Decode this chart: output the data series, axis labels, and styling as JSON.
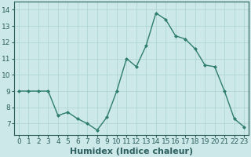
{
  "x": [
    0,
    1,
    2,
    3,
    4,
    5,
    6,
    7,
    8,
    9,
    10,
    11,
    12,
    13,
    14,
    15,
    16,
    17,
    18,
    19,
    20,
    21,
    22,
    23
  ],
  "y": [
    9.0,
    9.0,
    9.0,
    9.0,
    7.5,
    7.7,
    7.3,
    7.0,
    6.6,
    7.4,
    9.0,
    11.0,
    10.5,
    11.8,
    13.8,
    13.4,
    12.4,
    12.2,
    11.6,
    10.6,
    10.5,
    9.0,
    7.3,
    6.8
  ],
  "line_color": "#2e7d6e",
  "marker": "D",
  "marker_size": 2.0,
  "bg_color": "#cce8e8",
  "grid_color": "#b0d4d4",
  "xlabel": "Humidex (Indice chaleur)",
  "xlim": [
    -0.5,
    23.5
  ],
  "ylim": [
    6.3,
    14.5
  ],
  "yticks": [
    7,
    8,
    9,
    10,
    11,
    12,
    13,
    14
  ],
  "xtick_labels": [
    "0",
    "1",
    "2",
    "3",
    "4",
    "5",
    "6",
    "7",
    "8",
    "9",
    "10",
    "11",
    "12",
    "13",
    "14",
    "15",
    "16",
    "17",
    "18",
    "19",
    "20",
    "21",
    "22",
    "23"
  ],
  "tick_fontsize": 6.5,
  "xlabel_fontsize": 8,
  "tick_color": "#2e6060",
  "label_color": "#2e6060",
  "spine_color": "#2e6060"
}
